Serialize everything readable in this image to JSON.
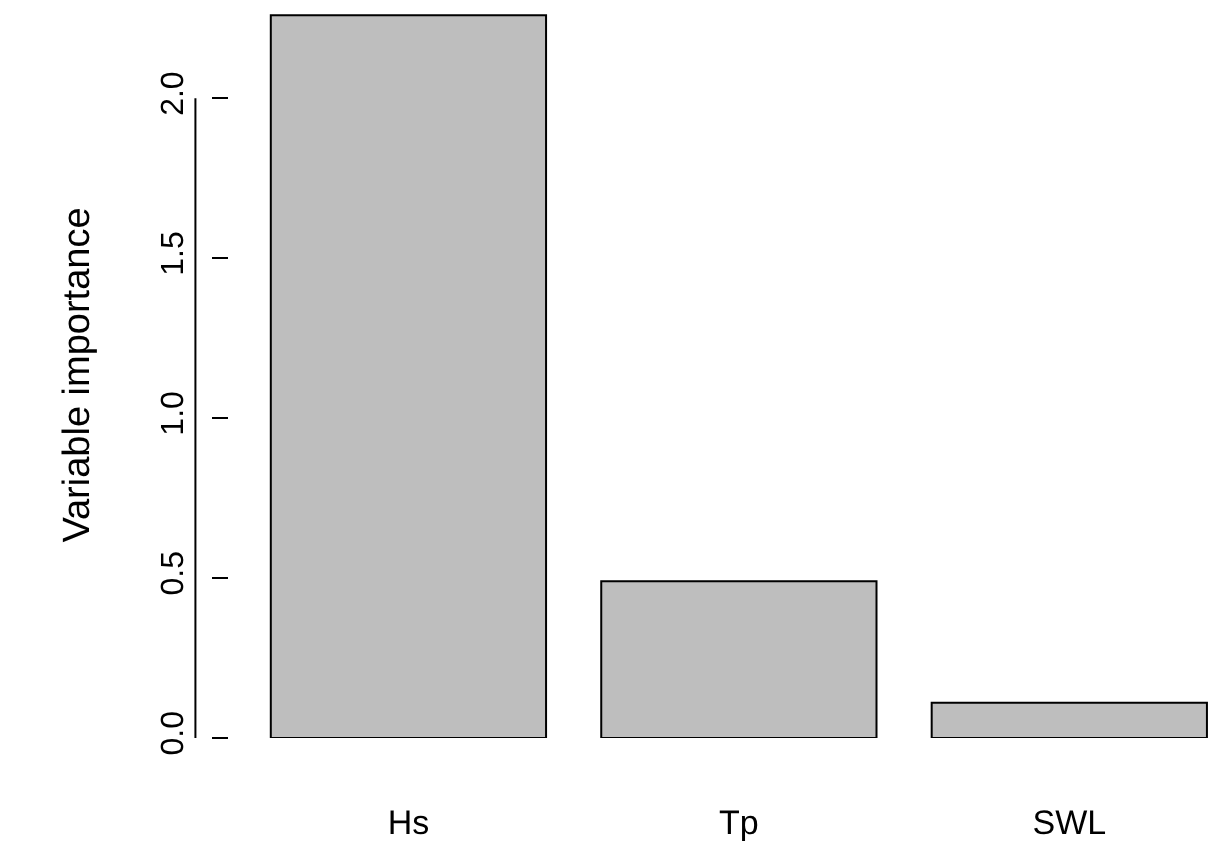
{
  "chart_data": {
    "type": "bar",
    "ylabel": "Variable importance",
    "categories": [
      "Hs",
      "Tp",
      "SWL"
    ],
    "values": [
      2.26,
      0.49,
      0.11
    ],
    "color": "#bebebe",
    "ylim": [
      0,
      2.27
    ],
    "yticks": [
      {
        "value": 0,
        "label": "0.0"
      },
      {
        "value": 0.5,
        "label": "0.5"
      },
      {
        "value": 1.0,
        "label": "1.0"
      },
      {
        "value": 1.5,
        "label": "1.5"
      },
      {
        "value": 2.0,
        "label": "2.0"
      }
    ]
  }
}
